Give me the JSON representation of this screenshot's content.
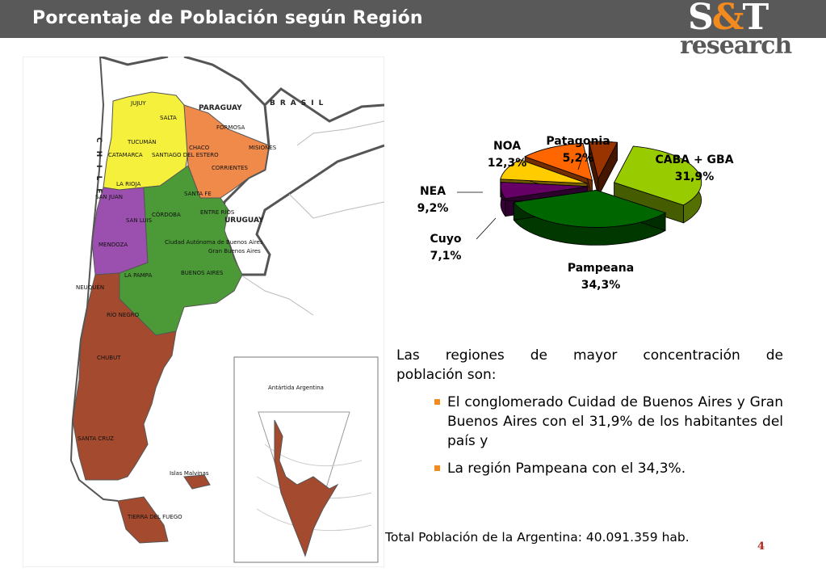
{
  "header": {
    "title": "Porcentaje de Población según Región"
  },
  "logo": {
    "line1_left": "S",
    "line1_amp": "&",
    "line1_right": "T",
    "line2": "research"
  },
  "map": {
    "colors": {
      "noa": "#f5f03c",
      "nea": "#f08a4b",
      "cuyo": "#9b4fae",
      "pampeana": "#4b9a37",
      "patagonia": "#a44a2f",
      "neighbors": "#ffffff"
    },
    "country_labels": [
      "PARAGUAY",
      "BRASIL",
      "URUGUAY",
      "CHILE"
    ],
    "province_labels": [
      "JUJUY",
      "SALTA",
      "FORMOSA",
      "TUCUMÁN",
      "CHACO",
      "MISIONES",
      "CATAMARCA",
      "SANTIAGO DEL ESTERO",
      "CORRIENTES",
      "LA RIOJA",
      "SANTA FE",
      "SAN JUAN",
      "CÓRDOBA",
      "ENTRE RÍOS",
      "SAN LUIS",
      "MENDOZA",
      "Ciudad Autónoma de Buenos Aires",
      "Gran Buenos Aires",
      "LA PAMPA",
      "BUENOS AIRES",
      "NEUQUÉN",
      "RÍO NEGRO",
      "CHUBUT",
      "SANTA CRUZ",
      "TIERRA DEL FUEGO"
    ],
    "islands_label": "Islas Malvinas",
    "inset_title": "Antártida Argentina"
  },
  "chart_data": {
    "type": "pie",
    "title": "",
    "series": [
      {
        "name": "CABA + GBA",
        "value": 31.9,
        "label": "CABA + GBA",
        "value_label": "31,9%",
        "color": "#99cc00"
      },
      {
        "name": "Pampeana",
        "value": 34.3,
        "label": "Pampeana",
        "value_label": "34,3%",
        "color": "#006600"
      },
      {
        "name": "Cuyo",
        "value": 7.1,
        "label": "Cuyo",
        "value_label": "7,1%",
        "color": "#660066"
      },
      {
        "name": "NEA",
        "value": 9.2,
        "label": "NEA",
        "value_label": "9,2%",
        "color": "#ffcc00"
      },
      {
        "name": "NOA",
        "value": 12.3,
        "label": "NOA",
        "value_label": "12,3%",
        "color": "#ff6600"
      },
      {
        "name": "Patagonia",
        "value": 5.2,
        "label": "Patagonia",
        "value_label": "5,2%",
        "color": "#993300"
      }
    ]
  },
  "text": {
    "intro_a": "Las regiones de mayor concentración de",
    "intro_b": "población son:",
    "bullets": [
      "El conglomerado Cuidad de Buenos Aires y Gran Buenos Aires con el 31,9% de los habitantes del país y",
      "La región Pampeana con el 34,3%."
    ]
  },
  "footer": {
    "total": "Total Población de la Argentina: 40.091.359 hab.",
    "page_number": "4"
  }
}
